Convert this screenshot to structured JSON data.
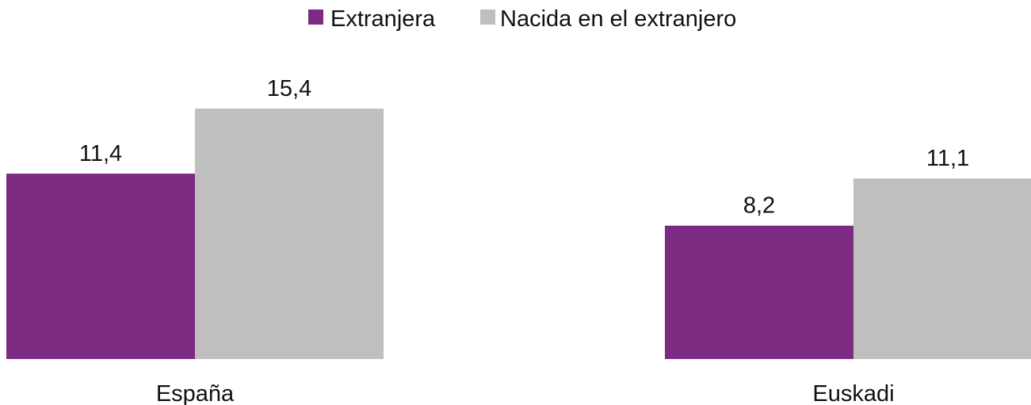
{
  "chart_data": {
    "type": "bar",
    "categories": [
      "España",
      "Euskadi"
    ],
    "series": [
      {
        "name": "Extranjera",
        "values": [
          11.4,
          8.2
        ],
        "labels": [
          "11,4",
          "8,2"
        ],
        "color": "#7d2b82"
      },
      {
        "name": "Nacida en el extranjero",
        "values": [
          15.4,
          11.1
        ],
        "labels": [
          "15,4",
          "11,1"
        ],
        "color": "#bfbfbf"
      }
    ],
    "ylim": [
      0,
      15.4
    ],
    "grid": false,
    "legend_position": "top-center",
    "axes_visible": false
  }
}
